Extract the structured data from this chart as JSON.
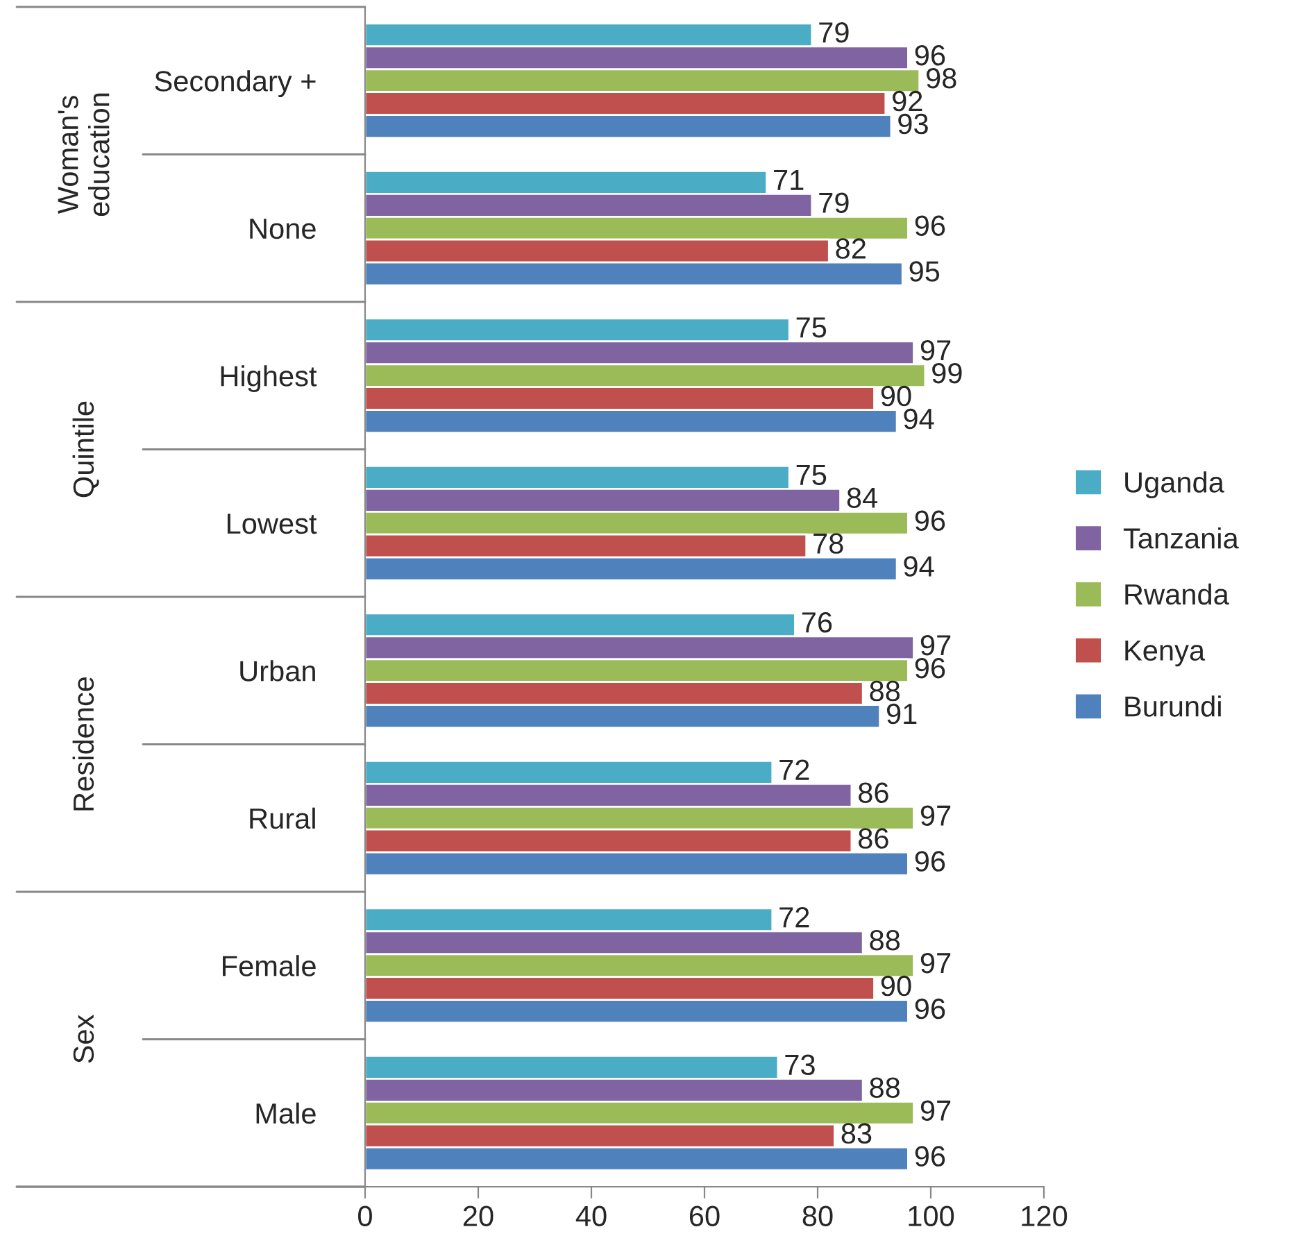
{
  "chart_data": {
    "type": "bar",
    "orientation": "horizontal",
    "categories": [
      "Secondary +",
      "None",
      "Highest",
      "Lowest",
      "Urban",
      "Rural",
      "Female",
      "Male"
    ],
    "series": [
      {
        "name": "Uganda",
        "color": "#4bacc6",
        "values": [
          79,
          71,
          75,
          75,
          76,
          72,
          72,
          73
        ]
      },
      {
        "name": "Tanzania",
        "color": "#8064a2",
        "values": [
          96,
          79,
          97,
          84,
          97,
          86,
          88,
          88
        ]
      },
      {
        "name": "Rwanda",
        "color": "#9bbb59",
        "values": [
          98,
          96,
          99,
          96,
          96,
          97,
          97,
          97
        ]
      },
      {
        "name": "Kenya",
        "color": "#c0504d",
        "values": [
          92,
          82,
          90,
          78,
          88,
          86,
          90,
          83
        ]
      },
      {
        "name": "Burundi",
        "color": "#4f81bd",
        "values": [
          93,
          95,
          94,
          94,
          91,
          96,
          96,
          96
        ]
      }
    ],
    "annotations": [
      "Woman's\neducation",
      "Quintile",
      "Residence",
      "Sex"
    ],
    "xlim": [
      0,
      120
    ],
    "xticks": [
      0,
      20,
      40,
      60,
      80,
      100,
      120
    ],
    "data_labels": true,
    "grid": false,
    "legend": "right"
  }
}
